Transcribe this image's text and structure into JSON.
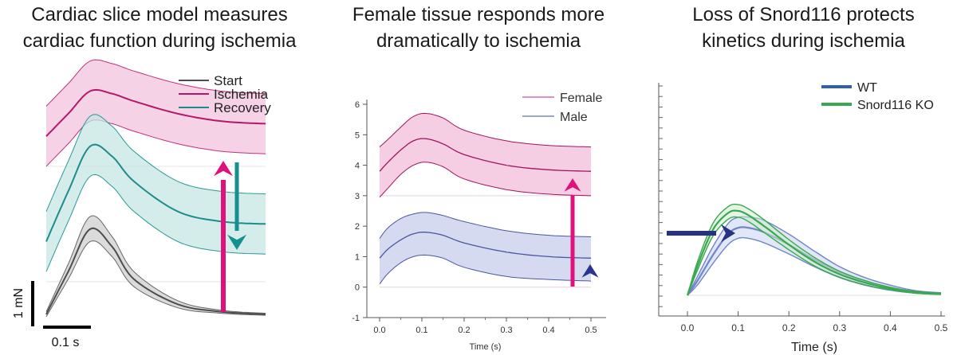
{
  "panels": [
    {
      "title": "Cardiac slice model measures\ncardiac function during ischemia",
      "legend": [
        {
          "label": "Start",
          "color": "#4d4d4d"
        },
        {
          "label": "Ischemia",
          "color": "#b5176b"
        },
        {
          "label": "Recovery",
          "color": "#1c8c8c"
        }
      ],
      "scalebar": {
        "y_label": "1 mN",
        "x_label": "0.1 s"
      },
      "arrows": [
        {
          "name": "ischemia-up-arrow",
          "color": "#e0107c",
          "direction": "up"
        },
        {
          "name": "recovery-down-arrow",
          "color": "#158f8f",
          "direction": "down"
        }
      ]
    },
    {
      "title": "Female tissue responds more\ndramatically to ischemia",
      "xlabel": "Time (s)",
      "legend": [
        {
          "label": "Female",
          "color": "#d44a9e"
        },
        {
          "label": "Male",
          "color": "#6272b8"
        }
      ]
    },
    {
      "title": "Loss of Snord116 protects\nkinetics during ischemia",
      "xlabel": "Time (s)",
      "legend": [
        {
          "label": "WT",
          "color": "#2f5fb0"
        },
        {
          "label": "Snord116 KO",
          "color": "#3aa84e"
        }
      ]
    }
  ],
  "chart_data": [
    {
      "type": "line",
      "title": "Cardiac slice model measures cardiac function during ischemia",
      "xlabel": "",
      "ylabel": "",
      "axes": "none (scale bars only)",
      "series": [
        {
          "name": "Ischemia",
          "x": [
            0.0,
            0.05,
            0.1,
            0.15,
            0.2,
            0.3,
            0.4,
            0.5
          ],
          "values": [
            3.6,
            4.05,
            4.5,
            4.45,
            4.3,
            4.05,
            3.9,
            3.85
          ],
          "band": [
            [
              3.0,
              4.2
            ],
            [
              3.45,
              4.65
            ],
            [
              3.9,
              5.1
            ],
            [
              3.85,
              5.05
            ],
            [
              3.7,
              4.9
            ],
            [
              3.45,
              4.65
            ],
            [
              3.3,
              4.5
            ],
            [
              3.25,
              4.45
            ]
          ]
        },
        {
          "name": "Recovery",
          "x": [
            0.0,
            0.05,
            0.1,
            0.15,
            0.2,
            0.3,
            0.4,
            0.5
          ],
          "values": [
            1.5,
            2.5,
            3.4,
            3.2,
            2.7,
            2.1,
            1.9,
            1.85
          ],
          "band": [
            [
              0.9,
              2.1
            ],
            [
              1.9,
              3.1
            ],
            [
              2.8,
              4.0
            ],
            [
              2.6,
              3.8
            ],
            [
              2.1,
              3.3
            ],
            [
              1.5,
              2.7
            ],
            [
              1.3,
              2.5
            ],
            [
              1.25,
              2.45
            ]
          ]
        },
        {
          "name": "Start",
          "x": [
            0.0,
            0.05,
            0.1,
            0.15,
            0.2,
            0.3,
            0.4,
            0.5
          ],
          "values": [
            0.05,
            0.9,
            1.75,
            1.4,
            0.75,
            0.25,
            0.1,
            0.05
          ],
          "band": [
            [
              0.0,
              0.1
            ],
            [
              0.75,
              1.05
            ],
            [
              1.5,
              2.0
            ],
            [
              1.2,
              1.6
            ],
            [
              0.6,
              0.9
            ],
            [
              0.18,
              0.32
            ],
            [
              0.07,
              0.13
            ],
            [
              0.03,
              0.07
            ]
          ]
        }
      ],
      "scale_bars": {
        "force_mN": 1,
        "time_s": 0.1
      }
    },
    {
      "type": "line",
      "title": "Female tissue responds more dramatically to ischemia",
      "xlabel": "Time (s)",
      "ylabel": "",
      "xlim": [
        -0.02,
        0.52
      ],
      "ylim": [
        -1,
        6
      ],
      "xticks": [
        "0.0",
        "0.1",
        "0.2",
        "0.3",
        "0.4",
        "0.5"
      ],
      "yticks": [
        "-1",
        "0",
        "1",
        "2",
        "3",
        "4",
        "5",
        "6"
      ],
      "legend_position": "top-right",
      "series": [
        {
          "name": "Female",
          "x": [
            0.0,
            0.02,
            0.05,
            0.08,
            0.11,
            0.15,
            0.2,
            0.3,
            0.4,
            0.5
          ],
          "values": [
            3.8,
            4.1,
            4.5,
            4.8,
            4.87,
            4.7,
            4.35,
            4.0,
            3.85,
            3.8
          ],
          "lower": [
            2.95,
            3.25,
            3.7,
            4.0,
            4.1,
            3.95,
            3.55,
            3.2,
            3.05,
            3.0
          ],
          "upper": [
            4.6,
            4.85,
            5.25,
            5.6,
            5.7,
            5.55,
            5.15,
            4.8,
            4.65,
            4.6
          ]
        },
        {
          "name": "Male",
          "x": [
            0.0,
            0.02,
            0.05,
            0.08,
            0.11,
            0.15,
            0.2,
            0.3,
            0.4,
            0.5
          ],
          "values": [
            0.95,
            1.25,
            1.55,
            1.75,
            1.8,
            1.7,
            1.45,
            1.15,
            1.0,
            0.95
          ],
          "lower": [
            0.1,
            0.45,
            0.8,
            1.0,
            1.05,
            0.95,
            0.65,
            0.35,
            0.25,
            0.2
          ],
          "upper": [
            1.6,
            1.95,
            2.25,
            2.4,
            2.45,
            2.35,
            2.15,
            1.85,
            1.7,
            1.65
          ]
        }
      ]
    },
    {
      "type": "line",
      "title": "Loss of Snord116 protects kinetics during ischemia",
      "xlabel": "Time (s)",
      "ylabel": "",
      "xlim": [
        -0.03,
        0.5
      ],
      "ylim": [
        -0.4,
        4.6
      ],
      "xticks": [
        "0.0",
        "0.1",
        "0.2",
        "0.3",
        "0.4",
        "0.5"
      ],
      "legend_position": "top-left",
      "series": [
        {
          "name": "WT",
          "x": [
            0.0,
            0.02,
            0.05,
            0.08,
            0.1,
            0.12,
            0.15,
            0.2,
            0.25,
            0.3,
            0.35,
            0.4,
            0.45,
            0.5
          ],
          "values": [
            0.0,
            0.35,
            0.95,
            1.45,
            1.6,
            1.6,
            1.5,
            1.2,
            0.85,
            0.55,
            0.33,
            0.18,
            0.08,
            0.04
          ],
          "lower": [
            0.0,
            0.25,
            0.75,
            1.2,
            1.35,
            1.35,
            1.25,
            0.98,
            0.68,
            0.42,
            0.24,
            0.12,
            0.05,
            0.02
          ],
          "upper": [
            0.0,
            0.45,
            1.15,
            1.7,
            1.85,
            1.85,
            1.78,
            1.45,
            1.05,
            0.68,
            0.42,
            0.24,
            0.11,
            0.06
          ]
        },
        {
          "name": "Snord116 KO",
          "x": [
            0.0,
            0.02,
            0.05,
            0.08,
            0.1,
            0.12,
            0.15,
            0.2,
            0.25,
            0.3,
            0.35,
            0.4,
            0.45,
            0.5
          ],
          "values": [
            0.0,
            0.7,
            1.55,
            1.95,
            2.0,
            1.9,
            1.65,
            1.2,
            0.8,
            0.5,
            0.3,
            0.16,
            0.07,
            0.03
          ],
          "lower": [
            0.0,
            0.6,
            1.4,
            1.8,
            1.85,
            1.75,
            1.5,
            1.08,
            0.7,
            0.43,
            0.25,
            0.13,
            0.05,
            0.02
          ],
          "upper": [
            0.0,
            0.8,
            1.7,
            2.1,
            2.15,
            2.05,
            1.8,
            1.32,
            0.9,
            0.57,
            0.35,
            0.19,
            0.09,
            0.05
          ]
        }
      ]
    }
  ]
}
